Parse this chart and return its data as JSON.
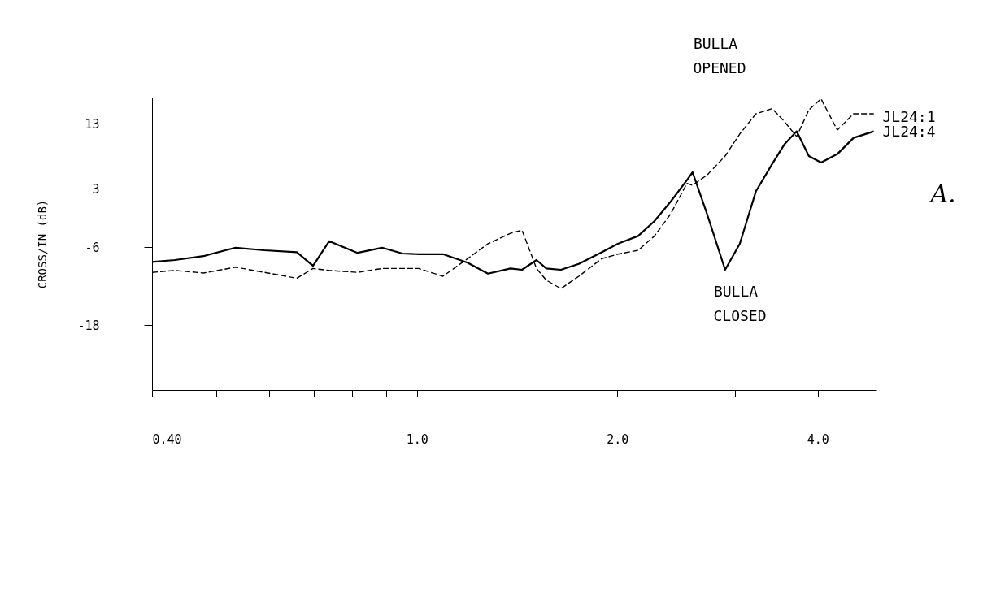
{
  "chart_data": {
    "type": "line",
    "ylabel": "CROSS/IN  (dB)",
    "log": "x",
    "grid": false,
    "marker": "none",
    "x": [
      0.4,
      0.433,
      0.478,
      0.534,
      0.59,
      0.66,
      0.698,
      0.738,
      0.814,
      0.886,
      0.951,
      1.006,
      1.094,
      1.191,
      1.278,
      1.382,
      1.438,
      1.512,
      1.564,
      1.645,
      1.75,
      1.894,
      2.003,
      2.149,
      2.274,
      2.405,
      2.544,
      2.594,
      2.729,
      2.903,
      3.054,
      3.23,
      3.417,
      3.564,
      3.718,
      3.878,
      4.045,
      4.279,
      4.527,
      4.855
    ],
    "series": [
      {
        "color": "#000000",
        "line_style": "solid",
        "values": [
          -8.3,
          -8.0,
          -7.4,
          -6.1,
          -6.5,
          -6.8,
          -8.9,
          -5.1,
          -6.9,
          -6.1,
          -7.0,
          -7.1,
          -7.1,
          -8.4,
          -10.1,
          -9.3,
          -9.5,
          -8.0,
          -9.3,
          -9.5,
          -8.6,
          -6.8,
          -5.5,
          -4.3,
          -2.0,
          1.0,
          4.3,
          5.5,
          -1.0,
          -9.5,
          -5.5,
          2.6,
          6.8,
          9.8,
          11.8,
          8.0,
          7.0,
          8.3,
          10.8,
          11.8
        ]
      },
      {
        "color": "#000000",
        "line_style": "dashed",
        "values": [
          -9.9,
          -9.6,
          -10.0,
          -9.1,
          -9.9,
          -10.8,
          -9.3,
          -9.6,
          -9.9,
          -9.3,
          -9.3,
          -9.3,
          -10.5,
          -7.8,
          -5.5,
          -3.9,
          -3.4,
          -9.3,
          -11.1,
          -12.4,
          -10.5,
          -7.8,
          -7.1,
          -6.5,
          -4.3,
          -0.9,
          3.8,
          3.5,
          5.1,
          8.0,
          11.4,
          14.5,
          15.3,
          13.3,
          11.0,
          15.1,
          16.8,
          12.0,
          14.5,
          14.5
        ]
      }
    ],
    "xlim": [
      0.4,
      4.9
    ],
    "xticks": [
      {
        "value": 0.4,
        "label": "0.40"
      },
      {
        "value": 0.5,
        "label": null
      },
      {
        "value": 0.6,
        "label": null
      },
      {
        "value": 0.7,
        "label": null
      },
      {
        "value": 0.8,
        "label": null
      },
      {
        "value": 0.9,
        "label": null
      },
      {
        "value": 1,
        "label": "1.0"
      },
      {
        "value": 2,
        "label": "2.0"
      },
      {
        "value": 3,
        "label": null
      },
      {
        "value": 4,
        "label": "4.0"
      }
    ],
    "ylim": [
      -28,
      17
    ],
    "yticks": [
      13,
      3,
      -6,
      -18
    ],
    "annotations": [
      "BULLA",
      "OPENED",
      "BULLA",
      "CLOSED",
      "JL24:1",
      "JL24:4",
      "A."
    ]
  }
}
